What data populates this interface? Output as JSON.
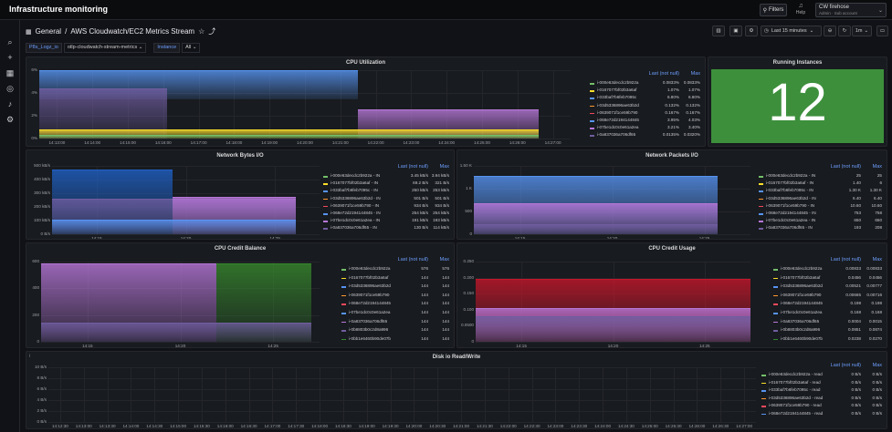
{
  "app_title": "Infrastructure monitoring",
  "filters_label": "Filters",
  "help_label": "Help",
  "account": {
    "name": "CW firehose",
    "sub": "Admin  ·  Sub account"
  },
  "breadcrumb": {
    "folder": "General",
    "sep": "/",
    "dashboard": "AWS Cloudwatch/EC2 Metrics Stream"
  },
  "time_range": "Last 15 minutes",
  "refresh_interval": "1m",
  "variables": [
    {
      "label": "P8s_Logz_io",
      "value": "otlp-cloudwatch-stream-metrics"
    },
    {
      "label": "Instance",
      "value": "All"
    }
  ],
  "colors": [
    "#73bf69",
    "#fade2a",
    "#5794f2",
    "#ff9830",
    "#f2495c",
    "#5794f2",
    "#b877d9",
    "#705da0",
    "#37872d"
  ],
  "panels": {
    "cpu_util": {
      "title": "CPU Utilization",
      "legend_headers": [
        "Last (not null)",
        "Max"
      ],
      "y_ticks": [
        "6%",
        "4%",
        "2%",
        "0%"
      ],
      "x_ticks": [
        "14:13:00",
        "14:14:00",
        "14:15:00",
        "14:16:00",
        "14:17:00",
        "14:18:00",
        "14:19:00",
        "14:20:00",
        "14:21:00",
        "14:22:00",
        "14:23:00",
        "14:24:00",
        "14:25:00",
        "14:26:00",
        "14:27:00"
      ],
      "rows": [
        {
          "name": "i-000e63decdc2b922a",
          "last": "0.0833%",
          "max": "0.0833%"
        },
        {
          "name": "i-0167077bf02b3a6af",
          "last": "1.07%",
          "max": "1.07%"
        },
        {
          "name": "i-033baf7b6feb7095c",
          "last": "6.80%",
          "max": "6.80%"
        },
        {
          "name": "i-03d5336896ae63b2d",
          "last": "0.132%",
          "max": "0.132%"
        },
        {
          "name": "i-0639071f1ce59b790",
          "last": "0.167%",
          "max": "0.167%"
        },
        {
          "name": "i-068e72d2194144845",
          "last": "3.95%",
          "max": "4.03%"
        },
        {
          "name": "i-07be1dc0c0e61a2ea",
          "last": "3.21%",
          "max": "3.40%"
        },
        {
          "name": "i-0a837036a706df65",
          "last": "0.0135%",
          "max": "0.0320%"
        }
      ]
    },
    "running": {
      "title": "Running Instances",
      "value": "12"
    },
    "net_bytes": {
      "title": "Network Bytes I/O",
      "legend_headers": [
        "Last (not null)",
        "Max"
      ],
      "y_ticks": [
        "500 kB/s",
        "400 kB/s",
        "300 kB/s",
        "200 kB/s",
        "100 kB/s",
        "0 B/s"
      ],
      "x_ticks": [
        "14:15",
        "14:20",
        "14:25"
      ],
      "rows": [
        {
          "name": "i-000e63decdc2b922a - IN",
          "last": "3.45 kB/s",
          "max": "3.94 kB/s"
        },
        {
          "name": "i-0167077bf02b3a6af - IN",
          "last": "69.2 B/s",
          "max": "321 B/s"
        },
        {
          "name": "i-033baf7b6feb7095c - IN",
          "last": "250 kB/s",
          "max": "253 kB/s"
        },
        {
          "name": "i-03d5336896ae63b2d - IN",
          "last": "501 B/s",
          "max": "501 B/s"
        },
        {
          "name": "i-0639071f1ce59b790 - IN",
          "last": "934 B/s",
          "max": "934 B/s"
        },
        {
          "name": "i-068e72d2194144845 - IN",
          "last": "254 kB/s",
          "max": "254 kB/s"
        },
        {
          "name": "i-07be1dc0c0e61a2ea - IN",
          "last": "191 kB/s",
          "max": "193 kB/s"
        },
        {
          "name": "i-0a837036a706df65 - IN",
          "last": "130 B/s",
          "max": "114 kB/s"
        }
      ]
    },
    "net_packets": {
      "title": "Network Packets I/O",
      "legend_headers": [
        "Last (not null)",
        "Max"
      ],
      "y_ticks": [
        "1.50 K",
        "1 K",
        "500",
        "0"
      ],
      "x_ticks": [
        "14:15",
        "14:20",
        "14:25"
      ],
      "rows": [
        {
          "name": "i-000e63decdc2b922a - IN",
          "last": "25",
          "max": "25"
        },
        {
          "name": "i-0167077bf02b3a6af - IN",
          "last": "1.40",
          "max": "6"
        },
        {
          "name": "i-033baf7b6feb7095c - IN",
          "last": "1.30 K",
          "max": "1.30 K"
        },
        {
          "name": "i-03d5336896ae63b2d - IN",
          "last": "6.40",
          "max": "6.40"
        },
        {
          "name": "i-0639071f1ce59b790 - IN",
          "last": "10.60",
          "max": "10.60"
        },
        {
          "name": "i-068e72d2194144845 - IN",
          "last": "753",
          "max": "758"
        },
        {
          "name": "i-07be1dc0c0e61a2ea - IN",
          "last": "650",
          "max": "650"
        },
        {
          "name": "i-0a837036a706df65 - IN",
          "last": "193",
          "max": "208"
        }
      ]
    },
    "cpu_credit_bal": {
      "title": "CPU Credit Balance",
      "legend_headers": [
        "Last (not null)",
        "Max"
      ],
      "y_ticks": [
        "600",
        "400",
        "200",
        "0"
      ],
      "x_ticks": [
        "14:15",
        "14:20",
        "14:25"
      ],
      "rows": [
        {
          "name": "i-000e63decdc2b922a",
          "last": "576",
          "max": "576"
        },
        {
          "name": "i-0167077bf02b3a6af",
          "last": "144",
          "max": "144"
        },
        {
          "name": "i-03d5336896ae63b2d",
          "last": "144",
          "max": "144"
        },
        {
          "name": "i-0639071f1ce59b790",
          "last": "144",
          "max": "144"
        },
        {
          "name": "i-068e72d2194144845",
          "last": "144",
          "max": "144"
        },
        {
          "name": "i-07be1dc0c0e61a2ea",
          "last": "144",
          "max": "144"
        },
        {
          "name": "i-0a837036a706df65",
          "last": "144",
          "max": "144"
        },
        {
          "name": "i-0b8803b0c2d8a996",
          "last": "144",
          "max": "144"
        },
        {
          "name": "i-0bb1e6460b90de07b",
          "last": "144",
          "max": "144"
        }
      ]
    },
    "cpu_credit_use": {
      "title": "CPU Credit Usage",
      "legend_headers": [
        "Last (not null)",
        "Max"
      ],
      "y_ticks": [
        "0.250",
        "0.200",
        "0.150",
        "0.100",
        "0.0500",
        "0"
      ],
      "x_ticks": [
        "14:15",
        "14:20",
        "14:25"
      ],
      "rows": [
        {
          "name": "i-000e63decdc2b922a",
          "last": "0.00833",
          "max": "0.00833"
        },
        {
          "name": "i-0167077bf02b3a6af",
          "last": "0.0456",
          "max": "0.0456"
        },
        {
          "name": "i-03d5336896ae63b2d",
          "last": "0.00521",
          "max": "0.00777"
        },
        {
          "name": "i-0639071f1ce59b790",
          "last": "0.00665",
          "max": "0.00716"
        },
        {
          "name": "i-068e72d2194144845",
          "last": "0.198",
          "max": "0.198"
        },
        {
          "name": "i-07be1dc0c0e61a2ea",
          "last": "0.168",
          "max": "0.168"
        },
        {
          "name": "i-0a837036a706df65",
          "last": "0.0004",
          "max": "0.0015"
        },
        {
          "name": "i-0b8803b0c2d8a996",
          "last": "0.0851",
          "max": "0.0874"
        },
        {
          "name": "i-0bb1e6460b90de07b",
          "last": "0.0238",
          "max": "0.0270"
        }
      ]
    },
    "disk": {
      "title": "Disk io Read/Write",
      "legend_headers": [
        "Last (not null)",
        "Max"
      ],
      "y_ticks": [
        "10 B/s",
        "8 B/s",
        "6 B/s",
        "4 B/s",
        "2 B/s",
        "0 B/s"
      ],
      "x_ticks": [
        "14:12:30",
        "14:13:00",
        "14:13:30",
        "14:14:00",
        "14:14:30",
        "14:15:00",
        "14:15:30",
        "14:16:00",
        "14:16:30",
        "14:17:00",
        "14:17:30",
        "14:18:00",
        "14:18:30",
        "14:19:00",
        "14:19:30",
        "14:20:00",
        "14:20:30",
        "14:21:00",
        "14:21:30",
        "14:22:00",
        "14:22:30",
        "14:23:00",
        "14:23:30",
        "14:24:00",
        "14:24:30",
        "14:25:00",
        "14:25:30",
        "14:26:00",
        "14:26:30",
        "14:27:00"
      ],
      "rows": [
        {
          "name": "i-000e63decdc2b922a - read",
          "last": "0 B/s",
          "max": "0 B/s"
        },
        {
          "name": "i-0167077bf02b3a6af - read",
          "last": "0 B/s",
          "max": "0 B/s"
        },
        {
          "name": "i-033baf7b6feb7095c - read",
          "last": "0 B/s",
          "max": "0 B/s"
        },
        {
          "name": "i-03d5336896ae63b2d - read",
          "last": "0 B/s",
          "max": "0 B/s"
        },
        {
          "name": "i-0639071f1ce59b790 - read",
          "last": "0 B/s",
          "max": "0 B/s"
        },
        {
          "name": "i-068e72d2194144845 - read",
          "last": "0 B/s",
          "max": "0 B/s"
        }
      ]
    }
  }
}
